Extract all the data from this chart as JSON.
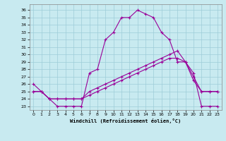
{
  "xlabel": "Windchill (Refroidissement éolien,°C)",
  "ylabel": "",
  "background_color": "#c8eaf0",
  "grid_color": "#9eccd8",
  "line_color": "#990099",
  "xlim": [
    -0.5,
    23.5
  ],
  "ylim": [
    22.5,
    36.8
  ],
  "xticks": [
    0,
    1,
    2,
    3,
    4,
    5,
    6,
    7,
    8,
    9,
    10,
    11,
    12,
    13,
    14,
    15,
    16,
    17,
    18,
    19,
    20,
    21,
    22,
    23
  ],
  "yticks": [
    23,
    24,
    25,
    26,
    27,
    28,
    29,
    30,
    31,
    32,
    33,
    34,
    35,
    36
  ],
  "line1_x": [
    0,
    1,
    2,
    3,
    4,
    5,
    6,
    7,
    8,
    9,
    10,
    11,
    12,
    13,
    14,
    15,
    16,
    17,
    18,
    19,
    20,
    21,
    22,
    23
  ],
  "line1_y": [
    26,
    25,
    24,
    23,
    23,
    23,
    23,
    27.5,
    28,
    32,
    33,
    35,
    35,
    36,
    35.5,
    35,
    33,
    32,
    29,
    29,
    27.5,
    23,
    23,
    23
  ],
  "line2_x": [
    0,
    1,
    2,
    3,
    4,
    5,
    6,
    7,
    8,
    9,
    10,
    11,
    12,
    13,
    14,
    15,
    16,
    17,
    18,
    19,
    20,
    21,
    22,
    23
  ],
  "line2_y": [
    25,
    25,
    24,
    24,
    24,
    24,
    24,
    25,
    25.5,
    26,
    26.5,
    27,
    27.5,
    28,
    28.5,
    29,
    29.5,
    30,
    30.5,
    29,
    27,
    25,
    25,
    25
  ],
  "line3_x": [
    0,
    1,
    2,
    3,
    4,
    5,
    6,
    7,
    8,
    9,
    10,
    11,
    12,
    13,
    14,
    15,
    16,
    17,
    18,
    19,
    20,
    21,
    22,
    23
  ],
  "line3_y": [
    25,
    25,
    24,
    24,
    24,
    24,
    24,
    24.5,
    25,
    25.5,
    26,
    26.5,
    27,
    27.5,
    28,
    28.5,
    29,
    29.5,
    29.5,
    29,
    26.5,
    25,
    25,
    25
  ],
  "marker": "+",
  "markersize": 3,
  "linewidth": 0.8,
  "tick_fontsize": 4.5,
  "xlabel_fontsize": 5.0
}
